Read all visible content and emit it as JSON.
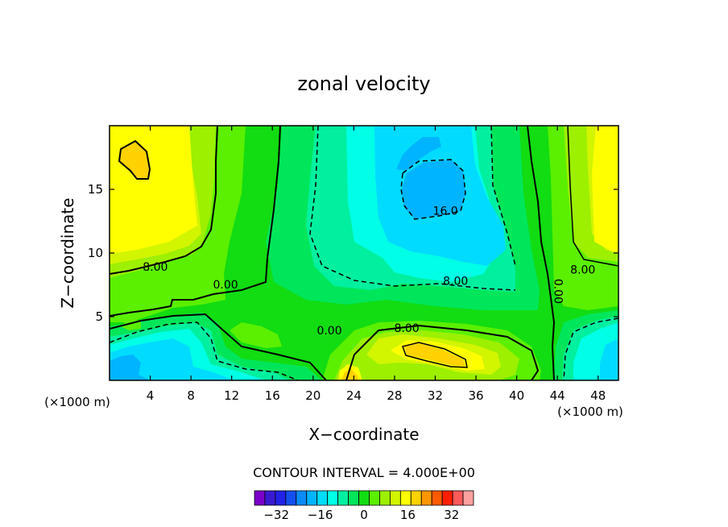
{
  "chart_data": {
    "type": "heatmap",
    "title": "zonal velocity",
    "xlabel": "X−coordinate",
    "ylabel": "Z−coordinate",
    "x_unit_left": "(×1000 m)",
    "x_unit_right": "(×1000 m)",
    "xlim": [
      0,
      50
    ],
    "ylim": [
      0,
      20
    ],
    "x_ticks": [
      4,
      8,
      12,
      16,
      20,
      24,
      28,
      32,
      36,
      40,
      44,
      48
    ],
    "y_ticks": [
      5,
      10,
      15
    ],
    "contour_interval_label": "CONTOUR INTERVAL = 4.000E+00",
    "contour_interval": 4,
    "contour_labels": [
      {
        "text": "8.00",
        "x": 4.5,
        "y": 8.6
      },
      {
        "text": "0.00",
        "x": 11.4,
        "y": 7.2
      },
      {
        "text": "16.0",
        "x": 33.0,
        "y": 13.0
      },
      {
        "text": "8.00",
        "x": 34.0,
        "y": 7.5
      },
      {
        "text": "8.00",
        "x": 46.5,
        "y": 8.4
      },
      {
        "text": "0.00",
        "x": 43.7,
        "y": 7.0,
        "rotate": 90
      },
      {
        "text": "0.00",
        "x": 21.6,
        "y": 3.6
      },
      {
        "text": "8.00",
        "x": 29.2,
        "y": 3.8
      }
    ],
    "colorbar": {
      "levels": [
        -40,
        -36,
        -32,
        -28,
        -24,
        -20,
        -16,
        -12,
        -8,
        -4,
        0,
        4,
        8,
        12,
        16,
        20,
        24,
        28,
        32,
        36,
        40
      ],
      "tick_labels": [
        "−32",
        "−16",
        "0",
        "16",
        "32"
      ],
      "tick_values": [
        -32,
        -16,
        0,
        16,
        32
      ],
      "colors": [
        "#7a00c8",
        "#3a1ad0",
        "#2222e6",
        "#1450f0",
        "#0a8cf5",
        "#00b4ff",
        "#00dcff",
        "#00ffe6",
        "#00f0a0",
        "#00e65a",
        "#12dc12",
        "#5af000",
        "#9cf000",
        "#d2f500",
        "#ffff00",
        "#ffd200",
        "#ff9600",
        "#ff5a00",
        "#ff1e00",
        "#ff5a5a",
        "#ffa0a0"
      ]
    },
    "contour_fill_colors": {
      "n20": "#00b4ff",
      "n16": "#00dcff",
      "n12": "#00ffe6",
      "n8": "#00f0a0",
      "n4": "#00e65a",
      "z0": "#12dc12",
      "p4": "#5af000",
      "p8": "#9cf000",
      "p12": "#d2f500",
      "p16": "#ffff00",
      "p20": "#ffd200"
    }
  }
}
